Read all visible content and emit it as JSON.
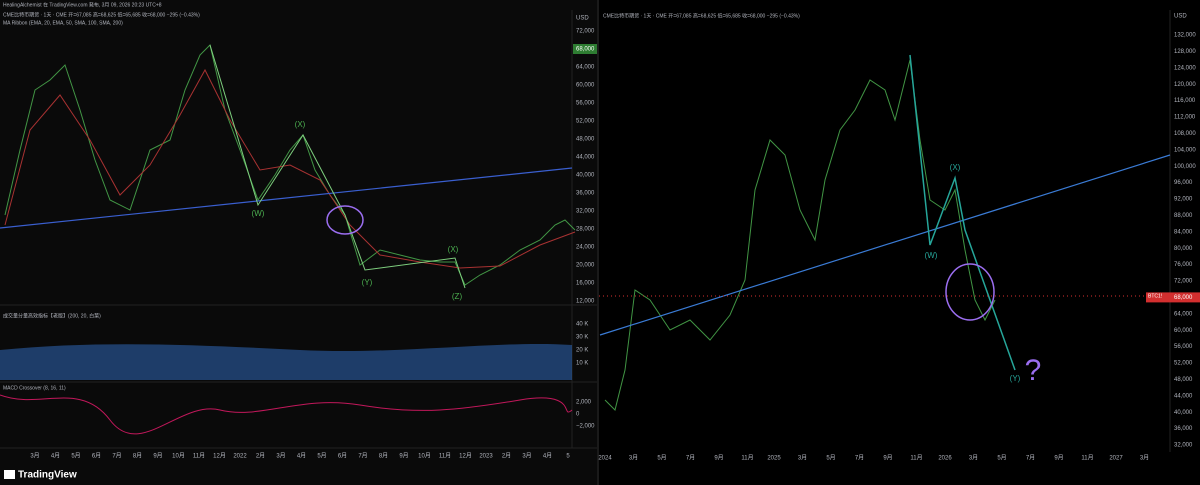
{
  "left": {
    "attribution": "HealingAlchemist 在 TradingView.com 発布, 3月 09, 2026 20:23 UTC+8",
    "symbol": "CME比特币期货 · 1天 · CME 开=67,085 高=68,625 低=65,685 收=68,000 −295 (−0.43%)",
    "ma_ribbon": "MA Ribbon (EMA, 20, EMA, 50, SMA, 100, SMA, 200)",
    "volume_indicator": "成交量分量高效指标【老版】(200, 20, 白菜)",
    "macd_indicator": "MACD Crossover (8, 16, 11)",
    "currency": "USD",
    "price_axis": [
      "72,000",
      "68,000",
      "64,000",
      "60,000",
      "56,000",
      "52,000",
      "48,000",
      "44,000",
      "40,000",
      "36,000",
      "32,000",
      "28,000",
      "24,000",
      "20,000",
      "16,000",
      "12,000"
    ],
    "volume_axis": [
      "40 K",
      "30 K",
      "20 K",
      "10 K"
    ],
    "macd_axis": [
      "2,000",
      "0",
      "−2,000"
    ],
    "time_axis": [
      "3月",
      "4月",
      "5月",
      "6月",
      "7月",
      "8月",
      "9月",
      "10月",
      "11月",
      "12月",
      "2022",
      "2月",
      "3月",
      "4月",
      "5月",
      "6月",
      "7月",
      "8月",
      "9月",
      "10月",
      "11月",
      "12月",
      "2023",
      "2月",
      "3月",
      "4月",
      "5"
    ],
    "wave_labels": [
      "(X)",
      "(W)",
      "(Y)",
      "(X)",
      "(Z)"
    ],
    "brand": "TradingView"
  },
  "right": {
    "symbol": "CME比特币期货 · 1天 · CME 开=67,085 高=68,625 低=65,685 收=68,000 −295 (−0.43%)",
    "currency": "USD",
    "price_axis": [
      "132,000",
      "128,000",
      "124,000",
      "120,000",
      "116,000",
      "112,000",
      "108,000",
      "104,000",
      "100,000",
      "96,000",
      "92,000",
      "88,000",
      "84,000",
      "80,000",
      "76,000",
      "72,000",
      "68,000",
      "64,000",
      "60,000",
      "56,000",
      "52,000",
      "48,000",
      "44,000",
      "40,000",
      "36,000",
      "32,000"
    ],
    "price_tag": "BTC1!",
    "time_axis": [
      "2024",
      "3月",
      "5月",
      "7月",
      "9月",
      "11月",
      "2025",
      "3月",
      "5月",
      "7月",
      "9月",
      "11月",
      "2026",
      "3月",
      "5月",
      "7月",
      "9月",
      "11月",
      "2027",
      "3月"
    ],
    "wave_labels": [
      "(X)",
      "(W)",
      "(Y)",
      "?"
    ]
  }
}
